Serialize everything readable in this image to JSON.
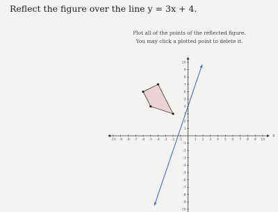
{
  "question": {
    "text": "Reflect the figure over the line y = 3x + 4."
  },
  "instructions": [
    "Plot all of the points of the reflected figure.",
    "You may click a plotted point to delete it."
  ],
  "graph": {
    "xlim": [
      -10,
      10
    ],
    "ylim": [
      -10,
      10
    ],
    "xticks": [
      -10,
      -9,
      -8,
      -7,
      -6,
      -5,
      -4,
      -3,
      -2,
      -1,
      1,
      2,
      3,
      4,
      5,
      6,
      7,
      8,
      9,
      10
    ],
    "yticks": [
      -10,
      -9,
      -8,
      -7,
      -6,
      -5,
      -4,
      -3,
      -2,
      -1,
      1,
      2,
      3,
      4,
      5,
      6,
      7,
      8,
      9,
      10
    ],
    "x_label": "x",
    "figure": {
      "x": [
        -6,
        -4,
        -2,
        -5
      ],
      "y": [
        6,
        7,
        3,
        4
      ]
    },
    "line": {
      "x": [
        -4.5,
        1.9
      ],
      "y": [
        -9.5,
        9.7
      ]
    }
  }
}
